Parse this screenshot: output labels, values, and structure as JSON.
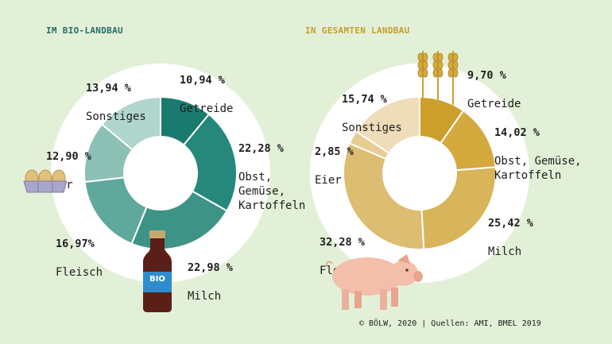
{
  "charts": {
    "bio": {
      "title": "IM BIO-LANDBAU"
    },
    "total": {
      "title": "IN GESAMTEN LANDBAU"
    }
  },
  "chart_data": [
    {
      "type": "pie",
      "title": "IM BIO-LANDBAU",
      "categories": [
        "Getreide",
        "Obst, Gemüse, Kartoffeln",
        "Milch",
        "Fleisch",
        "Eier",
        "Sonstiges"
      ],
      "values": [
        10.94,
        22.28,
        22.98,
        16.97,
        12.9,
        13.94
      ],
      "value_labels": [
        "10,94 %",
        "22,28 %",
        "22,98 %",
        "16,97%",
        "12,90 %",
        "13,94 %"
      ],
      "label_text": [
        "Getreide",
        "Obst,\nGemüse,\nKartoffeln",
        "Milch",
        "Fleisch",
        "Eier",
        "Sonstiges"
      ],
      "colors": [
        "#1b7a6e",
        "#25887b",
        "#3d9386",
        "#5ea89c",
        "#8cc0b5",
        "#b0d6ce"
      ]
    },
    {
      "type": "pie",
      "title": "IN GESAMTEN LANDBAU",
      "categories": [
        "Getreide",
        "Obst, Gemüse, Kartoffeln",
        "Milch",
        "Fleisch",
        "Eier",
        "Sonstiges"
      ],
      "values": [
        9.7,
        14.02,
        25.42,
        32.28,
        2.85,
        15.74
      ],
      "value_labels": [
        "9,70 %",
        "14,02 %",
        "25,42 %",
        "32,28 %",
        "2,85 %",
        "15,74 %"
      ],
      "label_text": [
        "Getreide",
        "Obst, Gemüse,\nKartoffeln",
        "Milch",
        "Fleisch",
        "Eier",
        "Sonstiges"
      ],
      "colors": [
        "#cc9f2a",
        "#d4a93e",
        "#d8b45a",
        "#ddbd72",
        "#e6cd93",
        "#efdcb8"
      ]
    }
  ],
  "bottle_label": "BIO",
  "footer": "© BÖLW, 2020 | Quellen: AMI, BMEL 2019"
}
